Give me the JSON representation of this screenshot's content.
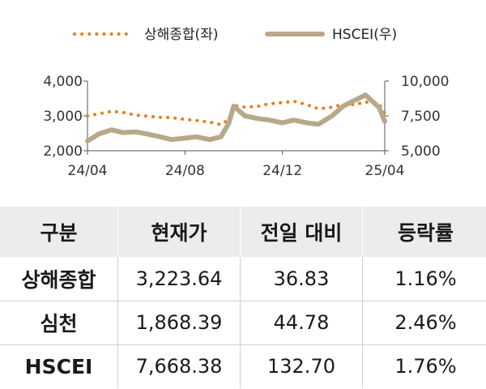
{
  "chart_data": {
    "type": "line",
    "title": "",
    "x_tick_labels": [
      "24/04",
      "24/08",
      "24/12",
      "25/04"
    ],
    "y_left": {
      "ticks": [
        "4,000",
        "3,000",
        "2,000"
      ],
      "ylim": [
        2000,
        4000
      ]
    },
    "y_right": {
      "ticks": [
        "10,000",
        "7,500",
        "5,000"
      ],
      "ylim": [
        5000,
        10000
      ]
    },
    "legend": {
      "placement": "top"
    },
    "series": [
      {
        "name": "상해종합(좌)",
        "axis": "left",
        "style": "dotted",
        "color": "#e67e22",
        "x": [
          "2024-04-01",
          "2024-04-15",
          "2024-05-01",
          "2024-05-15",
          "2024-06-01",
          "2024-06-15",
          "2024-07-01",
          "2024-07-15",
          "2024-08-01",
          "2024-08-15",
          "2024-09-01",
          "2024-09-15",
          "2024-09-25",
          "2024-10-01",
          "2024-10-15",
          "2024-11-01",
          "2024-11-15",
          "2024-12-01",
          "2024-12-15",
          "2025-01-01",
          "2025-01-15",
          "2025-02-01",
          "2025-02-15",
          "2025-03-01",
          "2025-03-15",
          "2025-04-01",
          "2025-04-08"
        ],
        "values": [
          3000,
          3060,
          3130,
          3100,
          3020,
          2990,
          2960,
          2950,
          2900,
          2870,
          2820,
          2750,
          2900,
          3300,
          3250,
          3280,
          3350,
          3380,
          3420,
          3320,
          3200,
          3250,
          3330,
          3320,
          3400,
          3340,
          3080
        ]
      },
      {
        "name": "HSCEI(우)",
        "axis": "right",
        "style": "solid",
        "color": "#b8a88a",
        "x": [
          "2024-04-01",
          "2024-04-15",
          "2024-05-01",
          "2024-05-15",
          "2024-06-01",
          "2024-06-15",
          "2024-07-01",
          "2024-07-15",
          "2024-08-01",
          "2024-08-15",
          "2024-09-01",
          "2024-09-15",
          "2024-09-25",
          "2024-10-01",
          "2024-10-15",
          "2024-11-01",
          "2024-11-15",
          "2024-12-01",
          "2024-12-15",
          "2025-01-01",
          "2025-01-15",
          "2025-02-01",
          "2025-02-15",
          "2025-03-01",
          "2025-03-15",
          "2025-04-01",
          "2025-04-08"
        ],
        "values": [
          5700,
          6200,
          6500,
          6300,
          6350,
          6200,
          6000,
          5800,
          5900,
          6000,
          5800,
          6000,
          7000,
          8200,
          7500,
          7300,
          7200,
          7000,
          7200,
          7000,
          6900,
          7500,
          8200,
          8600,
          9000,
          8100,
          7100
        ]
      }
    ]
  },
  "table": {
    "headers": [
      "구분",
      "현재가",
      "전일 대비",
      "등락률"
    ],
    "rows": [
      [
        "상해종합",
        "3,223.64",
        "36.83",
        "1.16%"
      ],
      [
        "심천",
        "1,868.39",
        "44.78",
        "2.46%"
      ],
      [
        "HSCEI",
        "7,668.38",
        "132.70",
        "1.76%"
      ]
    ]
  }
}
